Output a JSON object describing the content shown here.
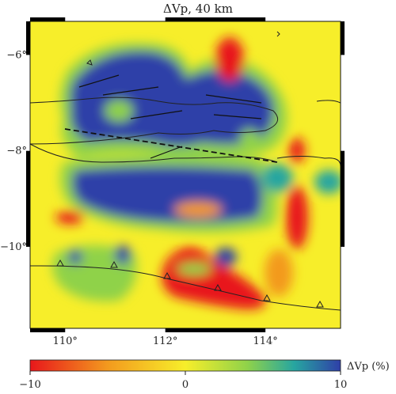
{
  "title": "ΔVp, 40 km",
  "map": {
    "lon_range": [
      109.3,
      115.5
    ],
    "lat_range": [
      -11.7,
      -5.3
    ],
    "lat_ticks": [
      {
        "value": -6,
        "label": "−6°"
      },
      {
        "value": -8,
        "label": "−8°"
      },
      {
        "value": -10,
        "label": "−10°"
      }
    ],
    "lon_ticks": [
      {
        "value": 110,
        "label": "110°"
      },
      {
        "value": 112,
        "label": "112°"
      },
      {
        "value": 114,
        "label": "114°"
      }
    ],
    "background_color": "#f7ee2a",
    "colormap": [
      "#e8171b",
      "#f39a1e",
      "#f7ee2a",
      "#8fd24a",
      "#27a6a0",
      "#2f3fa8"
    ]
  },
  "colorbar": {
    "label": "ΔVp (%)",
    "min": -10,
    "max": 10,
    "tick_labels": [
      "−10",
      "0",
      "10"
    ]
  }
}
